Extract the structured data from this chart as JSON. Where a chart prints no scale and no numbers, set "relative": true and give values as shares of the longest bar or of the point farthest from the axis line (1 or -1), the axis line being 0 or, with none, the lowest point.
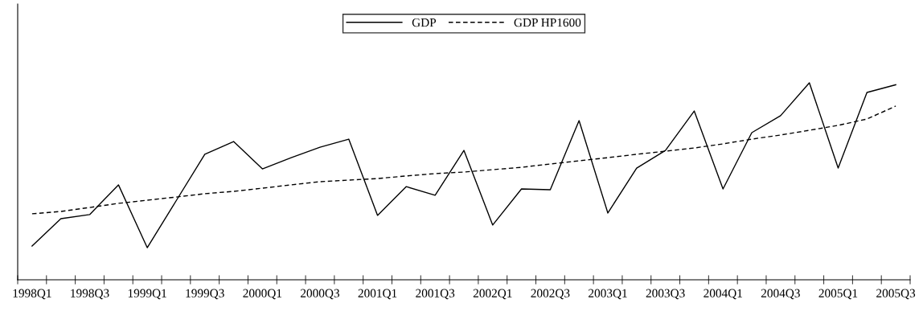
{
  "chart_data": {
    "type": "line",
    "relative": true,
    "categories": [
      "1998Q1",
      null,
      "1998Q3",
      null,
      "1999Q1",
      null,
      "1999Q3",
      null,
      "2000Q1",
      null,
      "2000Q3",
      null,
      "2001Q1",
      null,
      "2001Q3",
      null,
      "2002Q1",
      null,
      "2002Q3",
      null,
      "2003Q1",
      null,
      "2003Q3",
      null,
      "2004Q1",
      null,
      "2004Q3",
      null,
      "2005Q1",
      null,
      "2005Q3"
    ],
    "series": [
      {
        "name": "GDP",
        "color": "#000000",
        "line_style": "solid",
        "values": [
          0.171,
          0.31,
          0.331,
          0.482,
          0.163,
          0.4,
          0.637,
          0.702,
          0.563,
          0.62,
          0.673,
          0.714,
          0.327,
          0.473,
          0.429,
          0.657,
          0.278,
          0.461,
          0.457,
          0.808,
          0.339,
          0.567,
          0.657,
          0.857,
          0.461,
          0.747,
          0.833,
          1.0,
          0.567,
          0.951,
          0.99
        ]
      },
      {
        "name": "GDP HP1600",
        "color": "#000000",
        "line_style": "dashed",
        "values": [
          0.335,
          0.347,
          0.367,
          0.388,
          0.404,
          0.42,
          0.437,
          0.449,
          0.465,
          0.482,
          0.498,
          0.506,
          0.514,
          0.527,
          0.539,
          0.547,
          0.559,
          0.571,
          0.588,
          0.604,
          0.62,
          0.637,
          0.653,
          0.669,
          0.69,
          0.714,
          0.735,
          0.759,
          0.784,
          0.816,
          0.882
        ]
      }
    ],
    "legend": "top",
    "grid": false,
    "marker": "none"
  }
}
